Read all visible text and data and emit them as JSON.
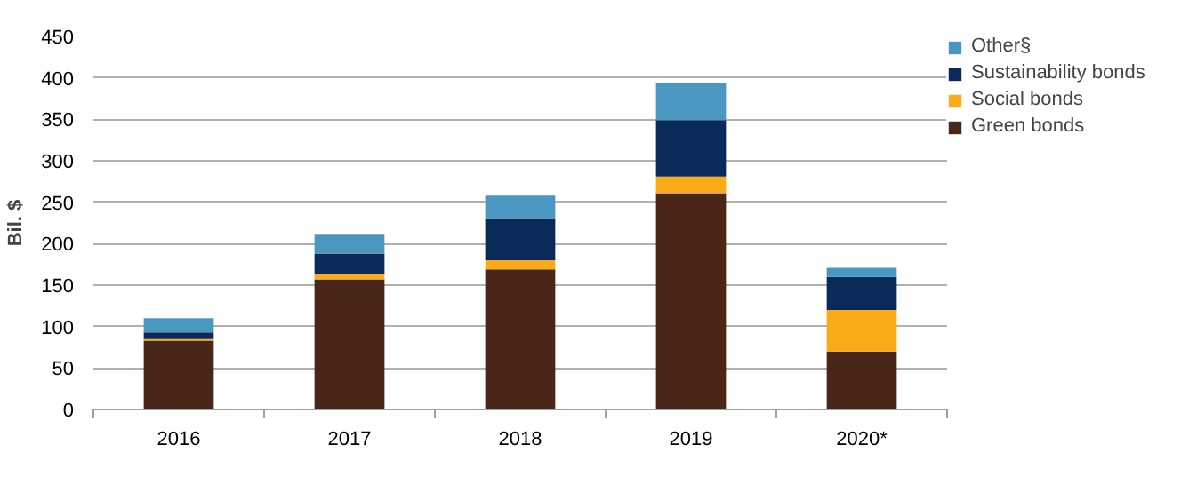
{
  "chart_data": {
    "type": "bar",
    "stacked": true,
    "ylabel": "Bil. $",
    "categories": [
      "2016",
      "2017",
      "2018",
      "2019",
      "2020*"
    ],
    "series": [
      {
        "name": "Green bonds",
        "color": "#4a2618",
        "values": [
          83,
          157,
          169,
          261,
          70
        ]
      },
      {
        "name": "Social bonds",
        "color": "#fbab18",
        "values": [
          2,
          7,
          11,
          20,
          50
        ]
      },
      {
        "name": "Sustainability bonds",
        "color": "#0a2b5a",
        "values": [
          8,
          24,
          51,
          68,
          40
        ]
      },
      {
        "name": "Other§",
        "color": "#4a98c2",
        "values": [
          17,
          24,
          27,
          45,
          11
        ]
      }
    ],
    "ylim": [
      0,
      450
    ],
    "yticks": [
      0,
      50,
      100,
      150,
      200,
      250,
      300,
      350,
      400,
      450
    ],
    "grid": "y",
    "legend": "right"
  }
}
